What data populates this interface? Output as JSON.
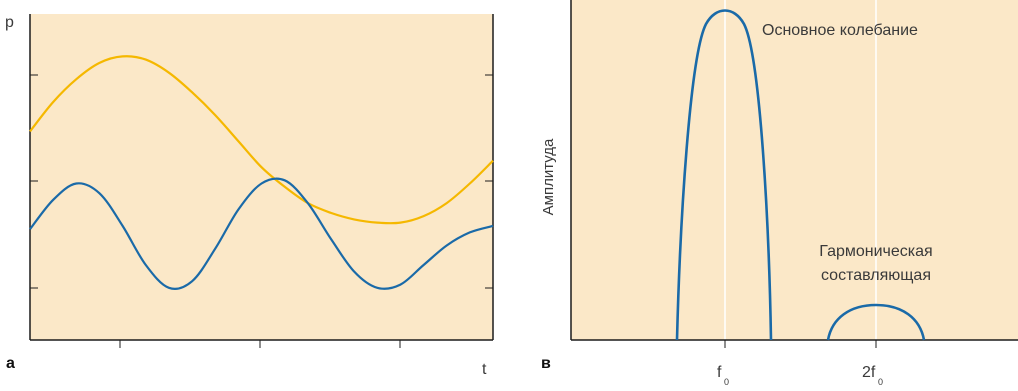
{
  "panels": {
    "a": {
      "letter": "а"
    },
    "b": {
      "letter": "в"
    }
  },
  "colors": {
    "background_fill": "#fbe8c8",
    "axis": "#1c1c1c",
    "gridline": "#ffffff",
    "yellow_series": "#f5b800",
    "blue_series": "#1a6aa8"
  },
  "chart_data": [
    {
      "type": "line",
      "panel": "а",
      "title": "",
      "xlabel": "t",
      "ylabel": "p",
      "grid": false,
      "x_range": [
        0,
        1
      ],
      "y_range": [
        0,
        1
      ],
      "series": [
        {
          "color": "#f5b800",
          "points": [
            [
              0.0,
              0.64
            ],
            [
              0.05,
              0.73
            ],
            [
              0.1,
              0.8
            ],
            [
              0.15,
              0.85
            ],
            [
              0.2,
              0.87
            ],
            [
              0.25,
              0.86
            ],
            [
              0.3,
              0.82
            ],
            [
              0.35,
              0.76
            ],
            [
              0.4,
              0.69
            ],
            [
              0.45,
              0.61
            ],
            [
              0.5,
              0.53
            ],
            [
              0.55,
              0.47
            ],
            [
              0.6,
              0.42
            ],
            [
              0.65,
              0.39
            ],
            [
              0.7,
              0.37
            ],
            [
              0.75,
              0.36
            ],
            [
              0.8,
              0.36
            ],
            [
              0.85,
              0.38
            ],
            [
              0.9,
              0.42
            ],
            [
              0.95,
              0.48
            ],
            [
              1.0,
              0.55
            ]
          ]
        },
        {
          "color": "#1a6aa8",
          "points": [
            [
              0.0,
              0.34
            ],
            [
              0.05,
              0.43
            ],
            [
              0.1,
              0.48
            ],
            [
              0.15,
              0.45
            ],
            [
              0.2,
              0.35
            ],
            [
              0.25,
              0.23
            ],
            [
              0.3,
              0.16
            ],
            [
              0.35,
              0.18
            ],
            [
              0.4,
              0.28
            ],
            [
              0.45,
              0.4
            ],
            [
              0.5,
              0.48
            ],
            [
              0.55,
              0.49
            ],
            [
              0.6,
              0.42
            ],
            [
              0.65,
              0.31
            ],
            [
              0.7,
              0.21
            ],
            [
              0.75,
              0.16
            ],
            [
              0.8,
              0.17
            ],
            [
              0.85,
              0.23
            ],
            [
              0.9,
              0.29
            ],
            [
              0.95,
              0.33
            ],
            [
              1.0,
              0.35
            ]
          ]
        }
      ]
    },
    {
      "type": "area",
      "panel": "в",
      "title": "",
      "xlabel": "",
      "ylabel": "Амплитуда",
      "grid": true,
      "x_ticks": [
        "f0",
        "2f0"
      ],
      "y_range": [
        0,
        1
      ],
      "series": [
        {
          "label": "Основное колебание",
          "center": "f0",
          "peak": 1.0,
          "color": "#1a6aa8"
        },
        {
          "label_line1": "Гармоническая",
          "label_line2": "составляющая",
          "center": "2f0",
          "peak": 0.11,
          "color": "#1a6aa8"
        }
      ],
      "tick_labels": {
        "f0_main": "f",
        "f0_sub": "0",
        "f2_main": "2f",
        "f2_sub": "0"
      },
      "annotations": {
        "fundamental": "Основное колебание",
        "harmonic_line1": "Гармоническая",
        "harmonic_line2": "составляющая"
      }
    }
  ]
}
